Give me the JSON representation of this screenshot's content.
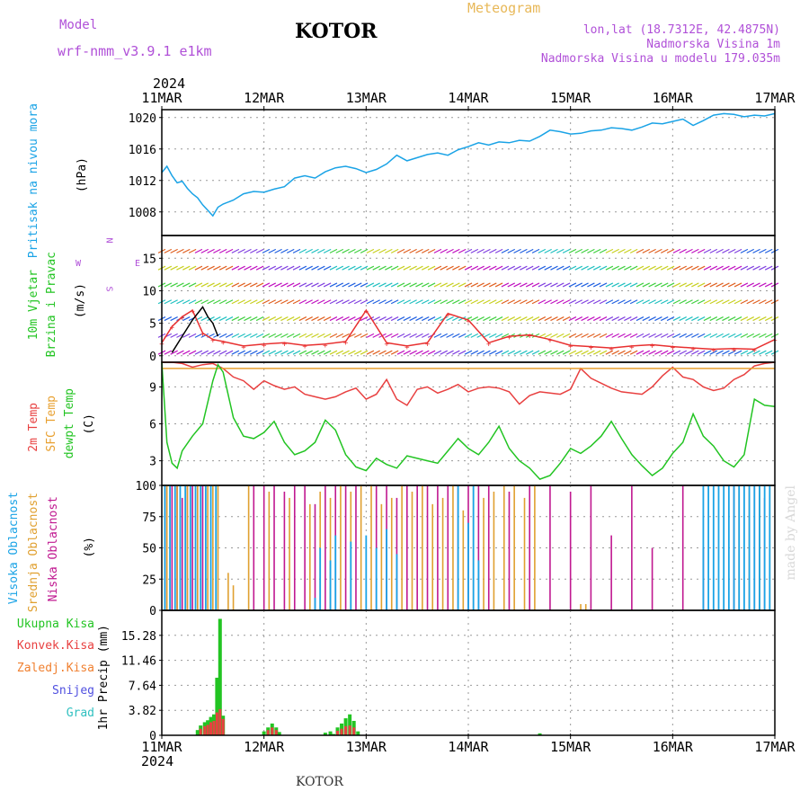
{
  "header": {
    "model_label": "Model",
    "model_name": "wrf-nmm_v3.9.1 e1km",
    "title": "KOTOR",
    "meteogram": "Meteogram",
    "lonlat": "lon,lat (18.7312E, 42.4875N)",
    "elevation": "Nadmorska Visina 1m",
    "elevation_model": "Nadmorska Visina u modelu 179.035m"
  },
  "time_axis": {
    "year": "2024",
    "labels": [
      "11MAR",
      "12MAR",
      "13MAR",
      "14MAR",
      "15MAR",
      "16MAR",
      "17MAR"
    ]
  },
  "footer": "KOTOR",
  "signature": "made by Angel",
  "colors": {
    "pressure": "#1aa3e6",
    "temp2m": "#e84040",
    "sfc_temp": "#e8a030",
    "dewpoint": "#22c422",
    "high_cloud": "#1aa3e6",
    "mid_cloud": "#e0a030",
    "low_cloud": "#c01890",
    "total_precip": "#22c422",
    "conv_precip": "#e84040",
    "frozen": "#f08030",
    "snow": "#5050e0",
    "hail": "#30c0c0",
    "wind_speed": "#e83030",
    "wind_gust": "#000000"
  },
  "chart_data": [
    {
      "type": "line",
      "name": "pressure",
      "ylabel": [
        "Pritisak na nivou mora",
        "(hPa)"
      ],
      "ylim": [
        1005,
        1021
      ],
      "yticks": [
        1008,
        1012,
        1016,
        1020
      ],
      "xlim": [
        0,
        6
      ],
      "grid": true,
      "series": [
        {
          "x": [
            0,
            0.05,
            0.1,
            0.15,
            0.2,
            0.25,
            0.3,
            0.35,
            0.4,
            0.45,
            0.5,
            0.55,
            0.6,
            0.7,
            0.8,
            0.9,
            1.0,
            1.1,
            1.2,
            1.3,
            1.4,
            1.5,
            1.6,
            1.7,
            1.8,
            1.9,
            2.0,
            2.1,
            2.2,
            2.3,
            2.4,
            2.5,
            2.6,
            2.7,
            2.8,
            2.9,
            3.0,
            3.1,
            3.2,
            3.3,
            3.4,
            3.5,
            3.6,
            3.7,
            3.8,
            3.9,
            4.0,
            4.1,
            4.2,
            4.3,
            4.4,
            4.5,
            4.6,
            4.7,
            4.8,
            4.9,
            5.0,
            5.1,
            5.2,
            5.3,
            5.4,
            5.5,
            5.6,
            5.7,
            5.8,
            5.9,
            6.0
          ],
          "values": [
            1013.0,
            1013.8,
            1012.6,
            1011.7,
            1011.9,
            1011.0,
            1010.3,
            1009.8,
            1008.9,
            1008.2,
            1007.5,
            1008.6,
            1009.0,
            1009.5,
            1010.3,
            1010.6,
            1010.5,
            1010.9,
            1011.2,
            1012.3,
            1012.6,
            1012.3,
            1013.1,
            1013.6,
            1013.8,
            1013.5,
            1013.0,
            1013.4,
            1014.1,
            1015.2,
            1014.5,
            1014.9,
            1015.3,
            1015.5,
            1015.2,
            1015.9,
            1016.3,
            1016.8,
            1016.5,
            1016.9,
            1016.8,
            1017.1,
            1017.0,
            1017.6,
            1018.4,
            1018.2,
            1017.9,
            1018.0,
            1018.3,
            1018.4,
            1018.7,
            1018.6,
            1018.4,
            1018.8,
            1019.3,
            1019.2,
            1019.5,
            1019.8,
            1019.0,
            1019.6,
            1020.3,
            1020.5,
            1020.4,
            1020.1,
            1020.3,
            1020.2,
            1020.5
          ]
        }
      ]
    },
    {
      "type": "line",
      "name": "wind",
      "ylabel": [
        "10m Vjetar",
        "Brzina i Pravac",
        "(m/s)"
      ],
      "compass": [
        "N",
        "W",
        "E",
        "S"
      ],
      "ylim": [
        -1,
        18.5
      ],
      "yticks": [
        0,
        5,
        10,
        15
      ],
      "xlim": [
        0,
        6
      ],
      "grid": true,
      "series": [
        {
          "name": "speed",
          "x": [
            0,
            0.1,
            0.2,
            0.3,
            0.4,
            0.5,
            0.6,
            0.8,
            1.0,
            1.2,
            1.4,
            1.6,
            1.8,
            2.0,
            2.2,
            2.4,
            2.6,
            2.8,
            3.0,
            3.2,
            3.4,
            3.6,
            3.8,
            4.0,
            4.2,
            4.4,
            4.6,
            4.8,
            5.0,
            5.2,
            5.4,
            5.6,
            5.8,
            6.0
          ],
          "values": [
            2.0,
            4.5,
            6.0,
            7.0,
            3.5,
            2.5,
            2.2,
            1.5,
            1.8,
            2.0,
            1.6,
            1.8,
            2.2,
            7.0,
            2.0,
            1.5,
            2.0,
            6.5,
            5.5,
            2.0,
            3.0,
            3.2,
            2.5,
            1.6,
            1.4,
            1.2,
            1.5,
            1.7,
            1.4,
            1.2,
            1.0,
            1.1,
            1.0,
            2.5
          ]
        },
        {
          "name": "gust",
          "x": [
            0.1,
            0.2,
            0.3,
            0.4,
            0.45,
            0.5,
            0.55
          ],
          "values": [
            0.5,
            3.0,
            5.5,
            7.5,
            6.0,
            5.0,
            3.0
          ]
        }
      ]
    },
    {
      "type": "line",
      "name": "temperature",
      "ylabel": [
        "2m Temp",
        "SFC Temp",
        "dewpt Temp",
        "(C)"
      ],
      "ylim": [
        1,
        11
      ],
      "yticks": [
        3,
        6,
        9
      ],
      "xlim": [
        0,
        6
      ],
      "grid": true,
      "series": [
        {
          "name": "2m Temp",
          "x": [
            0,
            0.1,
            0.2,
            0.3,
            0.4,
            0.5,
            0.6,
            0.7,
            0.8,
            0.9,
            1.0,
            1.1,
            1.2,
            1.3,
            1.4,
            1.5,
            1.6,
            1.7,
            1.8,
            1.9,
            2.0,
            2.1,
            2.2,
            2.3,
            2.4,
            2.5,
            2.6,
            2.7,
            2.8,
            2.9,
            3.0,
            3.1,
            3.2,
            3.3,
            3.4,
            3.5,
            3.6,
            3.7,
            3.8,
            3.9,
            4.0,
            4.1,
            4.2,
            4.3,
            4.4,
            4.5,
            4.6,
            4.7,
            4.8,
            4.9,
            5.0,
            5.1,
            5.2,
            5.3,
            5.4,
            5.5,
            5.6,
            5.7,
            5.8,
            5.9,
            6.0
          ],
          "values": [
            11,
            11,
            10.9,
            10.6,
            10.8,
            10.9,
            10.5,
            9.8,
            9.5,
            8.8,
            9.5,
            9.1,
            8.8,
            9.0,
            8.4,
            8.2,
            8.0,
            8.2,
            8.6,
            8.9,
            8.0,
            8.4,
            9.6,
            8.0,
            7.5,
            8.8,
            9.0,
            8.5,
            8.8,
            9.2,
            8.6,
            8.9,
            9.0,
            8.9,
            8.6,
            7.6,
            8.3,
            8.6,
            8.5,
            8.4,
            8.8,
            10.5,
            9.7,
            9.3,
            8.9,
            8.6,
            8.5,
            8.4,
            9.0,
            9.9,
            10.6,
            9.8,
            9.6,
            9.0,
            8.7,
            8.9,
            9.6,
            10.0,
            10.7,
            10.9,
            11.0
          ]
        },
        {
          "name": "SFC Temp",
          "x": [
            0,
            6
          ],
          "values": [
            10.5,
            10.5
          ]
        },
        {
          "name": "dewpt Temp",
          "x": [
            0,
            0.05,
            0.1,
            0.15,
            0.2,
            0.3,
            0.4,
            0.5,
            0.55,
            0.6,
            0.7,
            0.8,
            0.9,
            1.0,
            1.1,
            1.2,
            1.3,
            1.4,
            1.5,
            1.6,
            1.7,
            1.8,
            1.9,
            2.0,
            2.1,
            2.2,
            2.3,
            2.4,
            2.5,
            2.6,
            2.7,
            2.8,
            2.9,
            3.0,
            3.1,
            3.2,
            3.3,
            3.4,
            3.5,
            3.6,
            3.7,
            3.8,
            3.9,
            4.0,
            4.1,
            4.2,
            4.3,
            4.4,
            4.5,
            4.6,
            4.7,
            4.8,
            4.9,
            5.0,
            5.1,
            5.2,
            5.3,
            5.4,
            5.5,
            5.6,
            5.7,
            5.8,
            5.9,
            6.0
          ],
          "values": [
            11,
            4.5,
            2.8,
            2.4,
            3.8,
            5.0,
            6.0,
            9.5,
            10.8,
            10.2,
            6.5,
            5.0,
            4.8,
            5.3,
            6.2,
            4.5,
            3.5,
            3.8,
            4.5,
            6.3,
            5.5,
            3.5,
            2.5,
            2.2,
            3.2,
            2.7,
            2.4,
            3.4,
            3.2,
            3.0,
            2.8,
            3.8,
            4.8,
            4.0,
            3.5,
            4.5,
            5.8,
            4.0,
            3.0,
            2.4,
            1.5,
            1.8,
            2.8,
            4.0,
            3.6,
            4.2,
            5.0,
            6.2,
            4.8,
            3.5,
            2.6,
            1.8,
            2.4,
            3.6,
            4.5,
            6.8,
            5.0,
            4.2,
            3.0,
            2.5,
            3.5,
            8.0,
            7.5,
            7.4
          ]
        }
      ]
    },
    {
      "type": "bar",
      "name": "clouds",
      "ylabel": [
        "Visoka Oblacnost",
        "Srednja Oblacnost",
        "Niska Oblacnost",
        "(%)"
      ],
      "ylim": [
        0,
        100
      ],
      "yticks": [
        0,
        25,
        50,
        75,
        100
      ],
      "xlim": [
        0,
        6
      ],
      "grid": true,
      "series": [
        {
          "name": "Niska Oblacnost",
          "x": [
            0.05,
            0.1,
            0.15,
            0.2,
            0.25,
            0.3,
            0.35,
            0.4,
            0.9,
            1.0,
            1.1,
            1.2,
            1.3,
            1.4,
            1.5,
            1.6,
            1.7,
            1.8,
            1.9,
            2.1,
            2.2,
            2.3,
            2.4,
            2.5,
            2.6,
            2.7,
            2.8,
            2.9,
            3.0,
            3.1,
            3.2,
            3.4,
            3.6,
            3.8,
            4.0,
            4.2,
            4.4,
            4.6,
            4.8,
            5.1,
            5.3,
            5.6,
            5.8,
            5.9
          ],
          "values": [
            100,
            100,
            100,
            90,
            100,
            100,
            100,
            100,
            100,
            100,
            100,
            95,
            100,
            100,
            85,
            100,
            100,
            100,
            100,
            100,
            100,
            90,
            100,
            100,
            100,
            100,
            100,
            100,
            100,
            100,
            100,
            95,
            100,
            100,
            95,
            100,
            60,
            100,
            50,
            100,
            50,
            100,
            100,
            90
          ]
        },
        {
          "name": "Srednja Oblacnost",
          "x": [
            0.05,
            0.15,
            0.25,
            0.35,
            0.45,
            0.5,
            0.55,
            0.65,
            0.7,
            0.85,
            1.05,
            1.25,
            1.45,
            1.55,
            1.65,
            1.75,
            1.85,
            1.95,
            2.05,
            2.15,
            2.25,
            2.35,
            2.45,
            2.55,
            2.65,
            2.75,
            2.85,
            2.95,
            3.05,
            3.15,
            3.25,
            3.35,
            3.45,
            3.55,
            3.65,
            4.1,
            4.15,
            5.65,
            5.75,
            5.85,
            5.95
          ],
          "values": [
            100,
            100,
            100,
            100,
            100,
            100,
            100,
            30,
            20,
            100,
            95,
            90,
            85,
            95,
            90,
            100,
            95,
            100,
            100,
            85,
            90,
            100,
            95,
            100,
            85,
            90,
            100,
            80,
            100,
            90,
            95,
            100,
            100,
            90,
            100,
            5,
            5,
            100,
            100,
            100,
            100
          ]
        },
        {
          "name": "Visoka Oblacnost",
          "x": [
            0.03,
            0.08,
            0.13,
            0.18,
            0.23,
            0.28,
            0.33,
            0.38,
            0.43,
            0.48,
            0.53,
            1.5,
            1.55,
            1.65,
            1.7,
            1.85,
            2.0,
            2.1,
            2.2,
            2.3,
            2.9,
            3.0,
            3.05,
            3.1,
            5.3,
            5.35,
            5.4,
            5.45,
            5.5,
            5.55,
            5.6,
            5.65,
            5.7,
            5.75,
            5.8,
            5.85,
            5.9,
            5.95
          ],
          "values": [
            100,
            100,
            100,
            100,
            100,
            100,
            100,
            100,
            100,
            100,
            100,
            10,
            50,
            40,
            60,
            55,
            60,
            50,
            65,
            45,
            100,
            70,
            100,
            40,
            100,
            100,
            100,
            100,
            100,
            100,
            100,
            100,
            100,
            100,
            100,
            100,
            100,
            100
          ]
        }
      ]
    },
    {
      "type": "bar",
      "name": "precipitation",
      "ylabel": [
        "1hr Precip (mm)"
      ],
      "legend": [
        "Ukupna Kisa",
        "Konvek.Kisa",
        "Zaledj.Kisa",
        "Snijeg",
        "Grad"
      ],
      "ylim": [
        0,
        19.1
      ],
      "yticks": [
        0,
        3.82,
        7.64,
        11.46,
        15.28
      ],
      "xlim": [
        0,
        6
      ],
      "grid": true,
      "series": [
        {
          "name": "Ukupna Kisa",
          "x": [
            0.35,
            0.38,
            0.42,
            0.45,
            0.48,
            0.51,
            0.54,
            0.57,
            0.6,
            1.0,
            1.04,
            1.08,
            1.12,
            1.15,
            1.6,
            1.65,
            1.68,
            1.72,
            1.76,
            1.8,
            1.84,
            1.88,
            1.92,
            3.7
          ],
          "values": [
            0.8,
            1.5,
            2.0,
            2.3,
            2.8,
            3.2,
            8.8,
            17.8,
            3.0,
            0.6,
            1.2,
            1.8,
            1.2,
            0.5,
            0.4,
            0.6,
            0.2,
            1.2,
            1.8,
            2.6,
            3.2,
            2.2,
            0.6,
            0.3
          ]
        },
        {
          "name": "Konvek.Kisa",
          "x": [
            0.38,
            0.42,
            0.45,
            0.48,
            0.51,
            0.54,
            0.57,
            0.6,
            1.04,
            1.08,
            1.12,
            1.72,
            1.76,
            1.8,
            1.84,
            1.88
          ],
          "values": [
            1.0,
            1.4,
            1.6,
            2.0,
            2.2,
            3.5,
            4.0,
            2.5,
            0.8,
            1.2,
            0.8,
            0.7,
            1.0,
            1.4,
            1.5,
            1.2
          ]
        }
      ]
    }
  ]
}
